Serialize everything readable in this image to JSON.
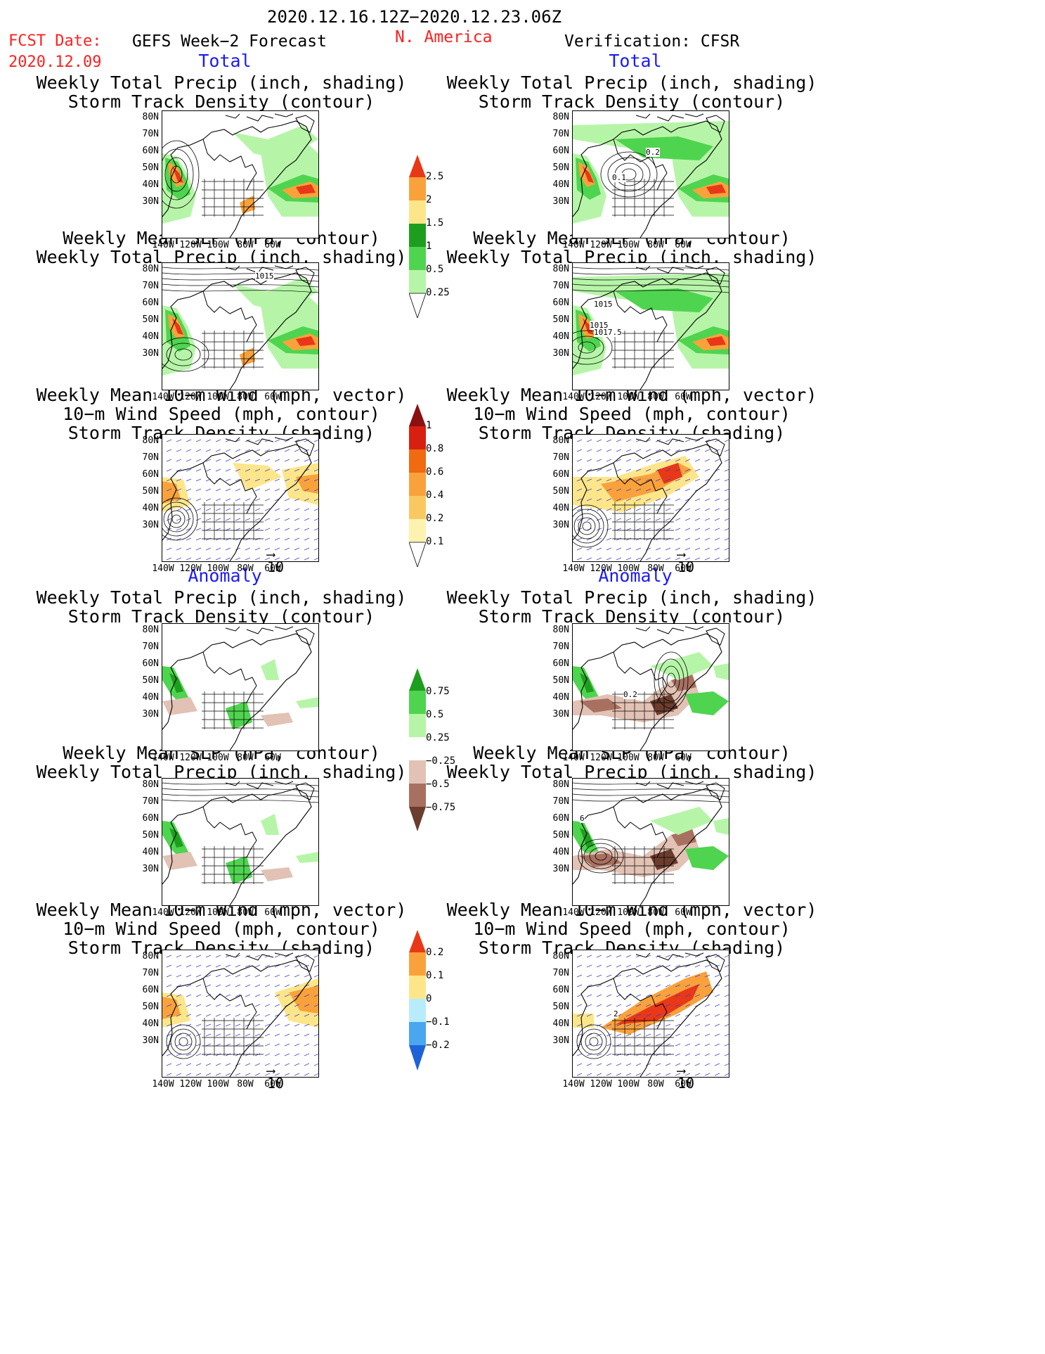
{
  "header": {
    "date_range": "2020.12.16.12Z−2020.12.23.06Z",
    "fcst_label": "FCST Date:",
    "fcst_date": "2020.12.09",
    "left_title": "GEFS Week−2 Forecast",
    "region": "N. America",
    "right_title": "Verification: CFSR"
  },
  "sections": {
    "total": "Total",
    "anomaly": "Anomaly"
  },
  "panel_titles": {
    "precip_storm": "Weekly Total Precip (inch, shading)\nStorm Track Density (contour)",
    "slp_precip": "Weekly Mean SLP (hPa, contour)\nWeekly Total Precip (inch, shading)",
    "wind_storm": "Weekly Mean 10−m Wind (mph, vector)\n10−m Wind Speed (mph, contour)\nStorm Track Density (shading)"
  },
  "axes": {
    "lat_ticks": [
      "80N",
      "70N",
      "60N",
      "50N",
      "40N",
      "30N"
    ],
    "lon_ticks": [
      "140W",
      "120W",
      "100W",
      "80W",
      "60W"
    ]
  },
  "map_labels": {
    "total_verif_storm_1": "0.2",
    "total_verif_storm_2": "0.1",
    "total_fcst_slp": "1015",
    "total_verif_slp_1": "1015",
    "total_verif_slp_2": "1015",
    "total_verif_slp_3": "1017.5",
    "anom_verif_storm": "0.2",
    "anom_verif_slp": "6",
    "anom_verif_wind": "2"
  },
  "vector_ref": "10",
  "colorbars": {
    "precip_total": [
      "0.25",
      "0.5",
      "1",
      "1.5",
      "2",
      "2.5"
    ],
    "storm_total": [
      "0.1",
      "0.2",
      "0.4",
      "0.6",
      "0.8",
      "1"
    ],
    "precip_anomaly": [
      "−0.75",
      "−0.5",
      "−0.25",
      "0.25",
      "0.5",
      "0.75"
    ],
    "storm_anomaly": [
      "−0.2",
      "−0.1",
      "0",
      "0.1",
      "0.2"
    ]
  },
  "colors": {
    "header_red": "#ff2020",
    "section_blue": "#1a1aff",
    "precip_light_green": "#b6f5a8",
    "precip_green": "#4fd44f",
    "precip_dark_green": "#1e9e1e",
    "precip_yellow": "#fde68a",
    "precip_orange": "#f9a23b",
    "precip_red": "#e83818",
    "anom_brown_light": "#e2c2b4",
    "anom_brown": "#a87060",
    "anom_brown_dark": "#6b3d2e",
    "anom_blue_light": "#b8ecfb",
    "anom_blue": "#4aa6ee",
    "anom_blue_dark": "#1e62d8"
  }
}
